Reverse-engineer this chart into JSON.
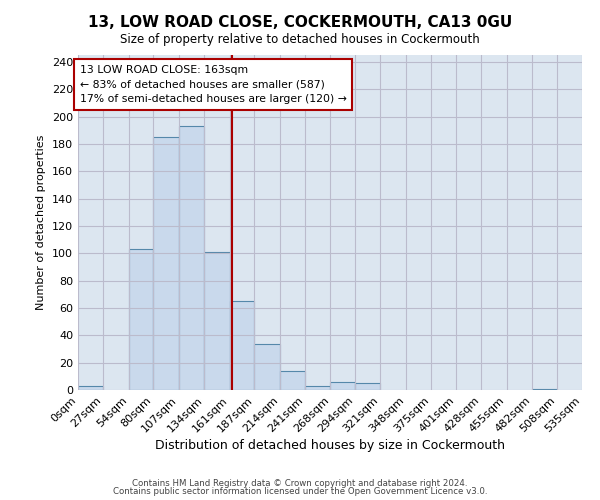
{
  "title": "13, LOW ROAD CLOSE, COCKERMOUTH, CA13 0GU",
  "subtitle": "Size of property relative to detached houses in Cockermouth",
  "xlabel": "Distribution of detached houses by size in Cockermouth",
  "ylabel": "Number of detached properties",
  "footer_lines": [
    "Contains HM Land Registry data © Crown copyright and database right 2024.",
    "Contains public sector information licensed under the Open Government Licence v3.0."
  ],
  "bin_edges": [
    0,
    27,
    54,
    80,
    107,
    134,
    161,
    187,
    214,
    241,
    268,
    294,
    321,
    348,
    375,
    401,
    428,
    455,
    482,
    508,
    535
  ],
  "bin_labels": [
    "0sqm",
    "27sqm",
    "54sqm",
    "80sqm",
    "107sqm",
    "134sqm",
    "161sqm",
    "187sqm",
    "214sqm",
    "241sqm",
    "268sqm",
    "294sqm",
    "321sqm",
    "348sqm",
    "375sqm",
    "401sqm",
    "428sqm",
    "455sqm",
    "482sqm",
    "508sqm",
    "535sqm"
  ],
  "counts": [
    3,
    0,
    103,
    185,
    193,
    101,
    65,
    34,
    14,
    3,
    6,
    5,
    0,
    0,
    0,
    0,
    0,
    0,
    1,
    0
  ],
  "property_size": 163,
  "bar_facecolor": "#c9d9ec",
  "bar_edgecolor": "#5588aa",
  "vline_color": "#aa0000",
  "annotation_box_edgecolor": "#aa0000",
  "grid_color": "#bbbbcc",
  "plot_bg_color": "#dce6f0",
  "background_color": "#ffffff",
  "annotation_text_line1": "13 LOW ROAD CLOSE: 163sqm",
  "annotation_text_line2": "← 83% of detached houses are smaller (587)",
  "annotation_text_line3": "17% of semi-detached houses are larger (120) →",
  "ylim": [
    0,
    245
  ],
  "yticks": [
    0,
    20,
    40,
    60,
    80,
    100,
    120,
    140,
    160,
    180,
    200,
    220,
    240
  ]
}
